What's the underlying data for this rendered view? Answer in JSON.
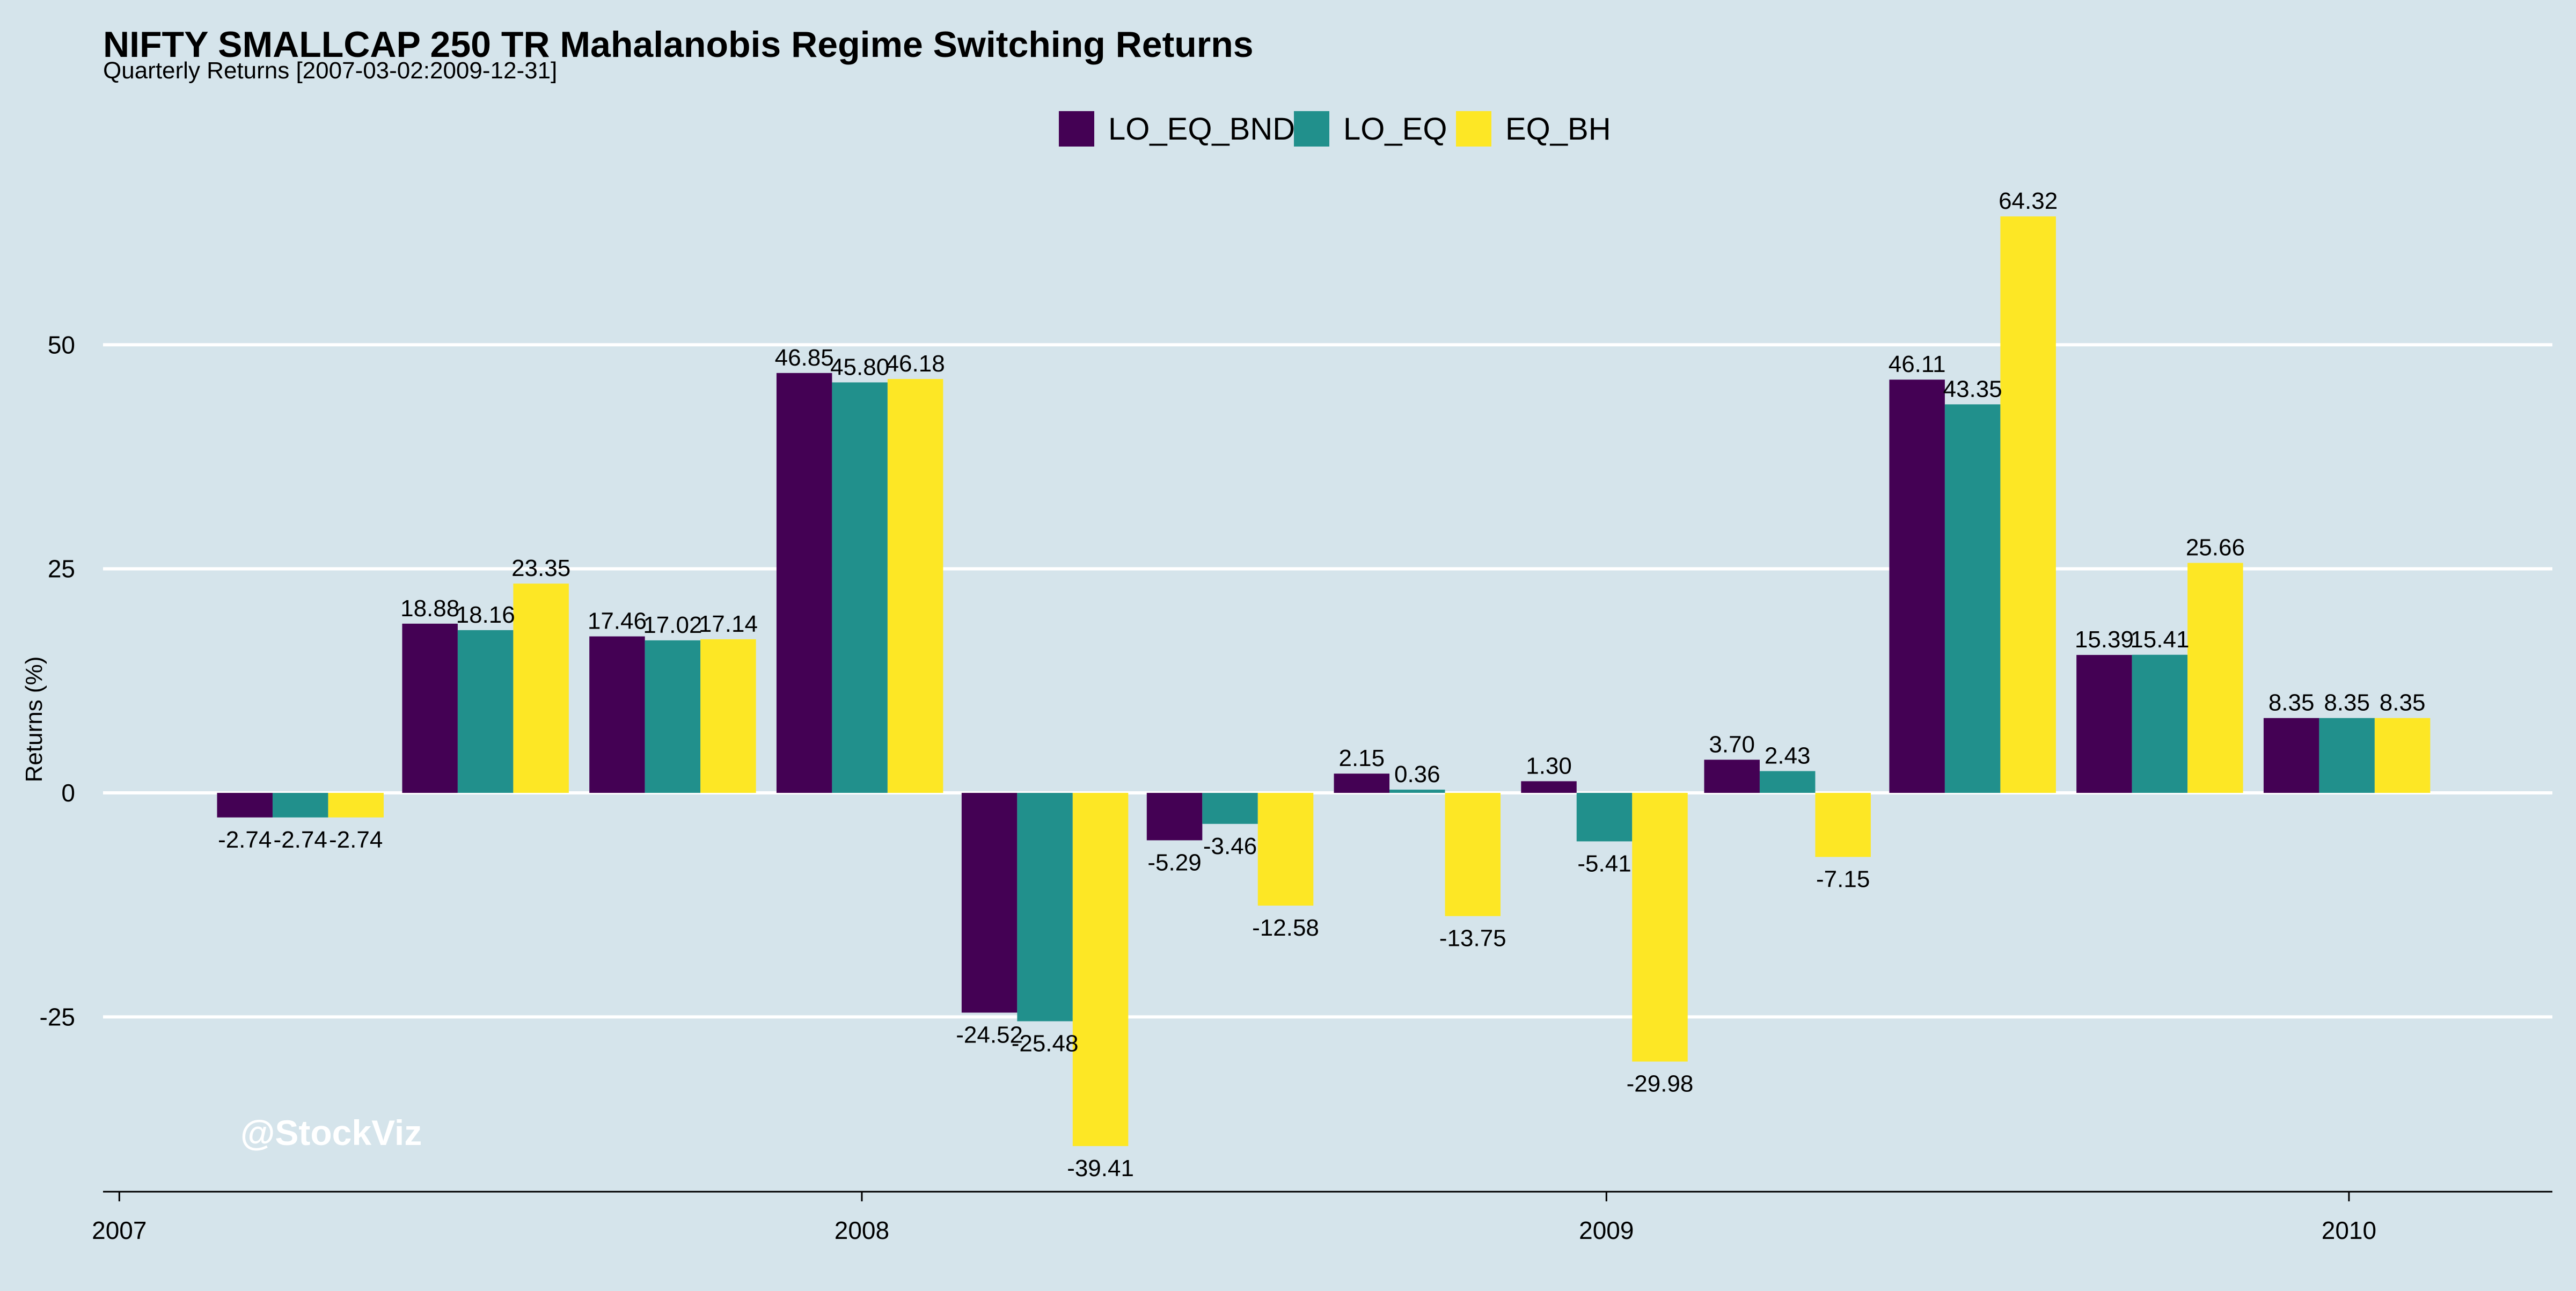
{
  "chart_data": {
    "type": "bar",
    "title": "NIFTY SMALLCAP 250 TR Mahalanobis Regime Switching Returns",
    "subtitle": "Quarterly Returns [2007-03-02:2009-12-31]",
    "ylabel": "Returns (%)",
    "xlabel": "",
    "ylim": [
      -44.5,
      70.5
    ],
    "yticks": [
      -25,
      0,
      25,
      50
    ],
    "ytick_labels": [
      "-25",
      "0",
      "25",
      "50"
    ],
    "xticks": [
      "2007-01-01",
      "2008-01-01",
      "2009-01-01",
      "2010-01-01"
    ],
    "xtick_labels": [
      "2007",
      "2008",
      "2009",
      "2010"
    ],
    "xlim": [
      "2006-12-24",
      "2010-04-11"
    ],
    "grid": "horizontal",
    "legend_position": "top-center",
    "watermark": "@StockViz",
    "categories": [
      "2007-03-31",
      "2007-06-30",
      "2007-09-30",
      "2007-12-31",
      "2008-03-31",
      "2008-06-30",
      "2008-09-30",
      "2008-12-31",
      "2009-03-31",
      "2009-06-30",
      "2009-09-30",
      "2009-12-31"
    ],
    "series": [
      {
        "name": "LO_EQ_BND",
        "color": "#440154",
        "values": [
          -2.74,
          18.88,
          17.46,
          46.85,
          -24.52,
          -5.29,
          2.15,
          1.3,
          3.7,
          46.11,
          15.39,
          8.35
        ],
        "labels": [
          "-2.74",
          "18.88",
          "17.46",
          "46.85",
          "-24.52",
          "-5.29",
          "2.15",
          "1.30",
          "3.70",
          "46.11",
          "15.39",
          "8.35"
        ]
      },
      {
        "name": "LO_EQ",
        "color": "#21908c",
        "values": [
          -2.74,
          18.16,
          17.02,
          45.8,
          -25.48,
          -3.46,
          0.36,
          -5.41,
          2.43,
          43.35,
          15.41,
          8.35
        ],
        "labels": [
          "-2.74",
          "18.16",
          "17.02",
          "45.80",
          "-25.48",
          "-3.46",
          "0.36",
          "-5.41",
          "2.43",
          "43.35",
          "15.41",
          "8.35"
        ]
      },
      {
        "name": "EQ_BH",
        "color": "#fde725",
        "values": [
          -2.74,
          23.35,
          17.14,
          46.18,
          -39.41,
          -12.58,
          -13.75,
          -29.98,
          -7.15,
          64.32,
          25.66,
          8.35
        ],
        "labels": [
          "-2.74",
          "23.35",
          "17.14",
          "46.18",
          "-39.41",
          "-12.58",
          "-13.75",
          "-29.98",
          "-7.15",
          "64.32",
          "25.66",
          "8.35"
        ]
      }
    ]
  }
}
